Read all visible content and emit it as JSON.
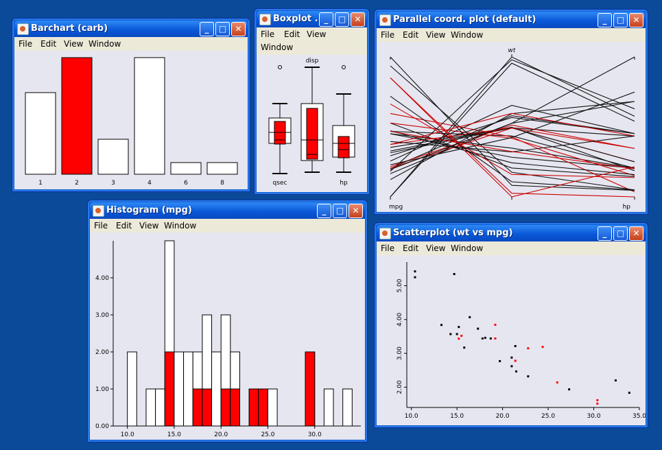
{
  "colors": {
    "highlight": "#ff0000",
    "bar": "#ffffff",
    "desktop": "#0a4a98",
    "titlebar": "#0a58d8",
    "client": "#e6e6f0",
    "menu": "#ece9d8"
  },
  "menu": [
    "File",
    "Edit",
    "View",
    "Window"
  ],
  "buttons": {
    "minimize": "_",
    "maximize": "□",
    "close": "✕"
  },
  "barchart": {
    "title": "Barchart (carb)",
    "chart_data": {
      "type": "bar",
      "variable": "carb",
      "categories": [
        "1",
        "2",
        "3",
        "4",
        "6",
        "8"
      ],
      "values": [
        7,
        10,
        3,
        10,
        1,
        1
      ],
      "highlighted": [
        0,
        10,
        0,
        0,
        0,
        0
      ]
    }
  },
  "boxplot": {
    "title": "Boxplot ...",
    "labels": {
      "left": "qsec",
      "middle": "disp",
      "right": "hp"
    }
  },
  "parallel": {
    "title": "Parallel coord. plot (default)",
    "axes": [
      "mpg",
      "wt",
      "hp"
    ]
  },
  "histogram": {
    "title": "Histogram (mpg)",
    "chart_data": {
      "type": "bar",
      "variable": "mpg",
      "binwidth": 1,
      "bins": [
        10,
        11,
        12,
        13,
        14,
        15,
        16,
        17,
        18,
        19,
        20,
        21,
        22,
        23,
        24,
        25,
        26,
        27,
        28,
        29,
        30,
        31,
        32,
        33,
        34
      ],
      "counts": [
        2,
        0,
        1,
        1,
        5,
        2,
        2,
        2,
        3,
        2,
        3,
        2,
        0,
        1,
        1,
        1,
        0,
        0,
        0,
        2,
        0,
        1,
        0,
        1,
        0
      ],
      "highlighted": [
        0,
        0,
        0,
        0,
        2,
        0,
        0,
        1,
        1,
        0,
        1,
        1,
        0,
        1,
        1,
        0,
        0,
        0,
        0,
        2,
        0,
        0,
        0,
        0,
        0
      ],
      "yticks": [
        "0.00",
        "1.00",
        "2.00",
        "3.00",
        "4.00"
      ],
      "xticks": [
        "10.0",
        "15.0",
        "20.0",
        "25.0",
        "30.0"
      ],
      "ylim": [
        0,
        5
      ],
      "xlim": [
        9,
        35
      ]
    }
  },
  "scatter": {
    "title": "Scatterplot (wt vs mpg)",
    "chart_data": {
      "type": "scatter",
      "x_variable": "mpg",
      "y_variable": "wt",
      "xticks": [
        "10.0",
        "15.0",
        "20.0",
        "25.0",
        "30.0",
        "35.0"
      ],
      "yticks": [
        "2.00",
        "3.00",
        "4.00",
        "5.00"
      ],
      "xlim": [
        9.5,
        35
      ],
      "ylim": [
        1.4,
        5.7
      ],
      "points": [
        [
          21.0,
          2.62,
          0
        ],
        [
          21.0,
          2.875,
          0
        ],
        [
          22.8,
          2.32,
          0
        ],
        [
          21.4,
          3.215,
          0
        ],
        [
          18.7,
          3.44,
          0
        ],
        [
          18.1,
          3.46,
          0
        ],
        [
          14.3,
          3.57,
          0
        ],
        [
          24.4,
          3.19,
          1
        ],
        [
          22.8,
          3.15,
          1
        ],
        [
          19.2,
          3.44,
          1
        ],
        [
          17.8,
          3.44,
          0
        ],
        [
          16.4,
          4.07,
          0
        ],
        [
          17.3,
          3.73,
          0
        ],
        [
          15.2,
          3.78,
          0
        ],
        [
          10.4,
          5.25,
          0
        ],
        [
          10.4,
          5.424,
          0
        ],
        [
          14.7,
          5.345,
          0
        ],
        [
          32.4,
          2.2,
          0
        ],
        [
          30.4,
          1.615,
          1
        ],
        [
          33.9,
          1.835,
          0
        ],
        [
          21.5,
          2.465,
          0
        ],
        [
          15.5,
          3.52,
          1
        ],
        [
          15.2,
          3.435,
          1
        ],
        [
          13.3,
          3.84,
          0
        ],
        [
          19.2,
          3.845,
          1
        ],
        [
          27.3,
          1.935,
          0
        ],
        [
          26.0,
          2.14,
          1
        ],
        [
          30.4,
          1.513,
          1
        ],
        [
          15.8,
          3.17,
          0
        ],
        [
          19.7,
          2.77,
          0
        ],
        [
          15.0,
          3.57,
          0
        ],
        [
          21.4,
          2.78,
          1
        ]
      ]
    }
  }
}
